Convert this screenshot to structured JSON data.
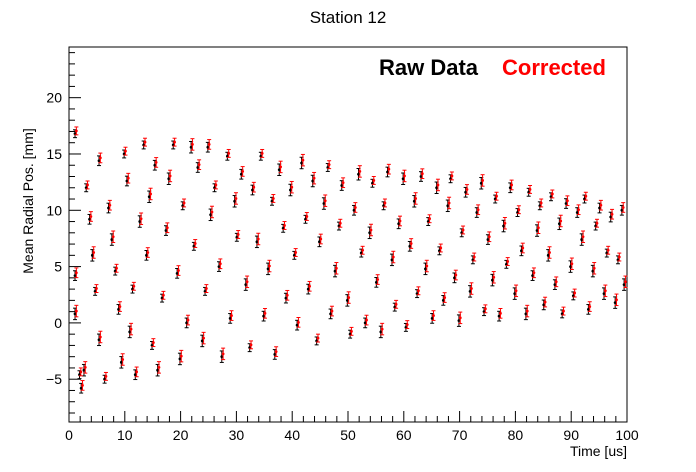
{
  "chart_data": {
    "type": "scatter",
    "title": "Station 12",
    "xlabel": "Time [us]",
    "ylabel": "Mean Radial Pos. [mm]",
    "xlim": [
      0,
      100
    ],
    "ylim": [
      -8.8,
      24.5
    ],
    "x_ticks": [
      0,
      10,
      20,
      30,
      40,
      50,
      60,
      70,
      80,
      90,
      100
    ],
    "y_ticks": [
      -5,
      0,
      5,
      10,
      15,
      20
    ],
    "grid": false,
    "legend": "top-right",
    "error_bars": true,
    "series": [
      {
        "name": "Raw Data",
        "color": "#000000",
        "y_offset": 0.0
      },
      {
        "name": "Corrected",
        "color": "#ff0000",
        "y_offset": 0.25
      }
    ],
    "points": [
      [
        1.2,
        16.8
      ],
      [
        1.2,
        4.2
      ],
      [
        1.2,
        0.8
      ],
      [
        2.0,
        -4.6
      ],
      [
        2.3,
        -5.8
      ],
      [
        2.8,
        -4.2
      ],
      [
        3.2,
        12.0
      ],
      [
        3.8,
        9.2
      ],
      [
        4.3,
        6.0
      ],
      [
        4.8,
        2.8
      ],
      [
        5.5,
        14.4
      ],
      [
        5.5,
        -1.5
      ],
      [
        6.5,
        -5.0
      ],
      [
        7.2,
        10.2
      ],
      [
        7.8,
        7.4
      ],
      [
        8.4,
        4.6
      ],
      [
        9.0,
        1.2
      ],
      [
        9.5,
        -3.5
      ],
      [
        10.0,
        15.0
      ],
      [
        10.5,
        12.6
      ],
      [
        11.0,
        -0.8
      ],
      [
        11.5,
        3.0
      ],
      [
        12.0,
        -4.6
      ],
      [
        12.8,
        9.0
      ],
      [
        13.5,
        15.8
      ],
      [
        14.0,
        6.0
      ],
      [
        14.5,
        11.2
      ],
      [
        15.0,
        -2.0
      ],
      [
        15.5,
        14.0
      ],
      [
        16.0,
        -4.2
      ],
      [
        16.8,
        2.2
      ],
      [
        17.5,
        8.2
      ],
      [
        18.0,
        12.8
      ],
      [
        18.8,
        15.8
      ],
      [
        19.5,
        4.4
      ],
      [
        20.0,
        -3.2
      ],
      [
        20.5,
        10.4
      ],
      [
        21.2,
        0.0
      ],
      [
        22.0,
        15.6
      ],
      [
        22.5,
        6.8
      ],
      [
        23.2,
        13.8
      ],
      [
        24.0,
        -1.6
      ],
      [
        24.5,
        2.8
      ],
      [
        25.0,
        15.6
      ],
      [
        25.5,
        9.6
      ],
      [
        26.2,
        12.0
      ],
      [
        27.0,
        5.0
      ],
      [
        27.5,
        -3.0
      ],
      [
        28.5,
        14.8
      ],
      [
        29.0,
        0.4
      ],
      [
        29.8,
        10.8
      ],
      [
        30.2,
        7.6
      ],
      [
        31.0,
        13.2
      ],
      [
        31.8,
        3.4
      ],
      [
        32.5,
        -2.2
      ],
      [
        33.0,
        11.8
      ],
      [
        33.8,
        7.2
      ],
      [
        34.5,
        14.8
      ],
      [
        35.0,
        0.6
      ],
      [
        35.8,
        4.8
      ],
      [
        36.5,
        10.8
      ],
      [
        37.0,
        -2.8
      ],
      [
        37.8,
        13.6
      ],
      [
        38.5,
        8.4
      ],
      [
        39.0,
        2.2
      ],
      [
        39.8,
        11.8
      ],
      [
        40.5,
        6.0
      ],
      [
        41.0,
        -0.2
      ],
      [
        41.8,
        14.2
      ],
      [
        42.5,
        9.2
      ],
      [
        43.0,
        3.0
      ],
      [
        43.8,
        12.6
      ],
      [
        44.5,
        -1.6
      ],
      [
        45.0,
        7.2
      ],
      [
        45.8,
        10.6
      ],
      [
        46.5,
        13.8
      ],
      [
        47.0,
        0.8
      ],
      [
        47.8,
        4.6
      ],
      [
        48.5,
        8.6
      ],
      [
        49.0,
        12.2
      ],
      [
        50.0,
        2.0
      ],
      [
        50.5,
        -1.0
      ],
      [
        51.2,
        10.0
      ],
      [
        52.0,
        13.2
      ],
      [
        52.5,
        6.2
      ],
      [
        53.2,
        0.0
      ],
      [
        54.0,
        8.0
      ],
      [
        54.5,
        12.4
      ],
      [
        55.2,
        3.6
      ],
      [
        56.0,
        -0.8
      ],
      [
        56.5,
        10.4
      ],
      [
        57.2,
        13.4
      ],
      [
        58.0,
        5.6
      ],
      [
        58.5,
        1.4
      ],
      [
        59.2,
        8.8
      ],
      [
        60.0,
        12.8
      ],
      [
        60.5,
        -0.4
      ],
      [
        61.2,
        6.8
      ],
      [
        62.0,
        10.8
      ],
      [
        62.5,
        2.6
      ],
      [
        63.2,
        13.0
      ],
      [
        64.0,
        4.8
      ],
      [
        64.5,
        9.0
      ],
      [
        65.2,
        0.4
      ],
      [
        66.0,
        12.0
      ],
      [
        66.5,
        6.4
      ],
      [
        67.2,
        2.0
      ],
      [
        68.0,
        10.4
      ],
      [
        68.5,
        12.8
      ],
      [
        69.2,
        4.0
      ],
      [
        70.0,
        0.2
      ],
      [
        70.5,
        8.0
      ],
      [
        71.2,
        11.6
      ],
      [
        72.0,
        2.8
      ],
      [
        72.5,
        5.6
      ],
      [
        73.2,
        9.8
      ],
      [
        74.0,
        12.4
      ],
      [
        74.5,
        1.0
      ],
      [
        75.2,
        7.4
      ],
      [
        76.0,
        3.8
      ],
      [
        76.5,
        11.0
      ],
      [
        77.2,
        0.6
      ],
      [
        78.0,
        8.6
      ],
      [
        78.5,
        5.2
      ],
      [
        79.2,
        12.0
      ],
      [
        80.0,
        2.6
      ],
      [
        80.5,
        9.8
      ],
      [
        81.2,
        6.4
      ],
      [
        82.0,
        0.8
      ],
      [
        82.5,
        11.6
      ],
      [
        83.2,
        4.2
      ],
      [
        84.0,
        8.2
      ],
      [
        84.5,
        10.4
      ],
      [
        85.2,
        1.6
      ],
      [
        86.0,
        6.0
      ],
      [
        86.5,
        11.2
      ],
      [
        87.2,
        3.4
      ],
      [
        88.0,
        8.8
      ],
      [
        88.5,
        0.8
      ],
      [
        89.2,
        10.6
      ],
      [
        90.0,
        5.0
      ],
      [
        90.5,
        2.4
      ],
      [
        91.2,
        9.8
      ],
      [
        92.0,
        7.4
      ],
      [
        92.5,
        11.0
      ],
      [
        93.2,
        1.2
      ],
      [
        94.0,
        4.6
      ],
      [
        94.5,
        8.6
      ],
      [
        95.2,
        10.2
      ],
      [
        96.0,
        2.6
      ],
      [
        96.5,
        6.2
      ],
      [
        97.2,
        9.4
      ],
      [
        98.0,
        1.8
      ],
      [
        98.5,
        5.6
      ],
      [
        99.2,
        10.0
      ],
      [
        99.6,
        3.4
      ]
    ]
  }
}
